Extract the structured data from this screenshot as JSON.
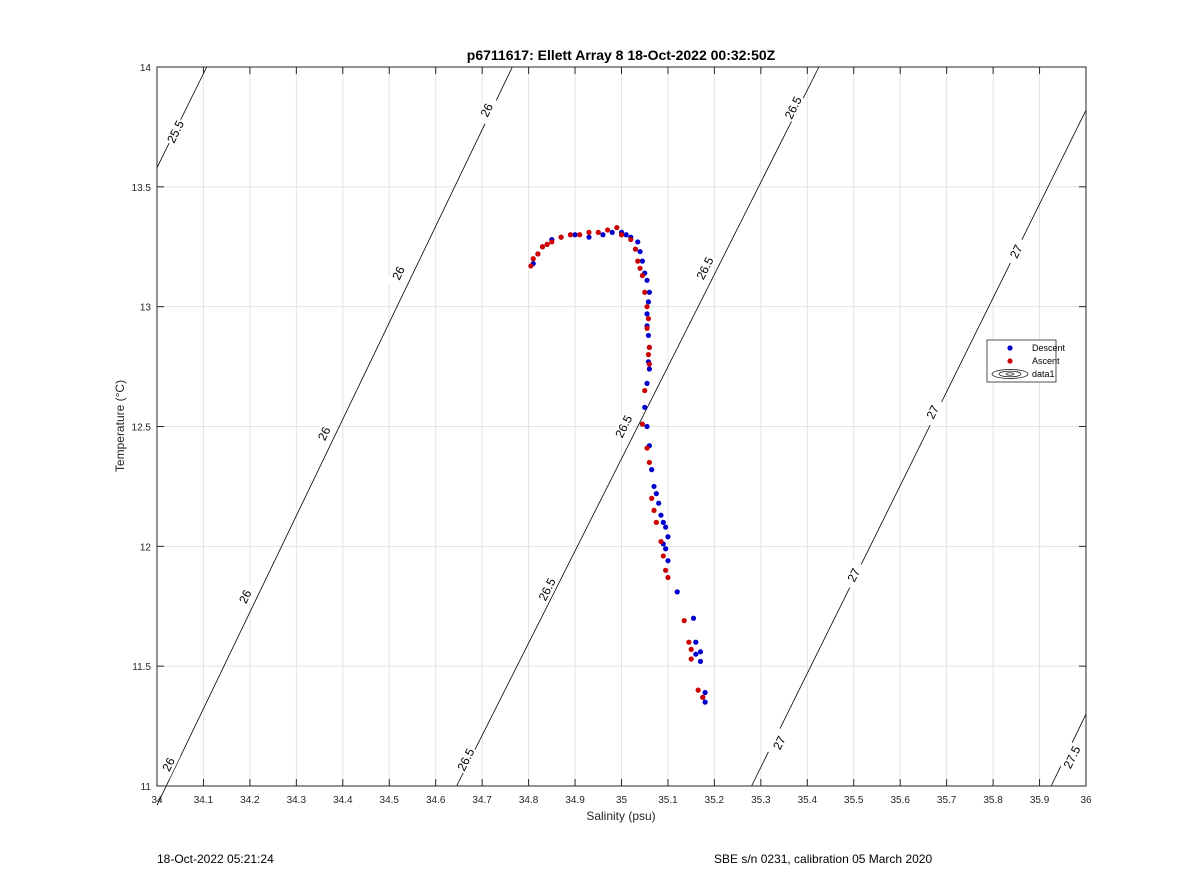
{
  "chart_data": {
    "type": "scatter",
    "title": "p6711617: Ellett Array 8 18-Oct-2022 00:32:50Z",
    "xlabel": "Salinity (psu)",
    "ylabel": "Temperature (°C)",
    "xlim": [
      34,
      36
    ],
    "ylim": [
      11,
      14
    ],
    "xticks": [
      "34",
      "34.1",
      "34.2",
      "34.3",
      "34.4",
      "34.5",
      "34.6",
      "34.7",
      "34.8",
      "34.9",
      "35",
      "35.1",
      "35.2",
      "35.3",
      "35.4",
      "35.5",
      "35.6",
      "35.7",
      "35.8",
      "35.9",
      "36"
    ],
    "yticks": [
      "11",
      "11.5",
      "12",
      "12.5",
      "13",
      "13.5",
      "14"
    ],
    "grid": true,
    "legend_position": "east",
    "legend": [
      "Descent",
      "Ascent",
      "data1"
    ],
    "series": [
      {
        "name": "Descent",
        "color": "#0000cc",
        "x": [
          35.18,
          35.175,
          35.18,
          35.17,
          35.17,
          35.16,
          35.16,
          35.155,
          35.12,
          35.1,
          35.095,
          35.09,
          35.1,
          35.095,
          35.09,
          35.085,
          35.08,
          35.075,
          35.07,
          35.065,
          35.06,
          35.055,
          35.05,
          35.055,
          35.06,
          35.058,
          35.06,
          35.058,
          35.055,
          35.055,
          35.058,
          35.06,
          35.055,
          35.05,
          35.045,
          35.04,
          35.035,
          35.02,
          35.01,
          35.0,
          34.98,
          34.96,
          34.93,
          34.9,
          34.87,
          34.85,
          34.83,
          34.82,
          34.81
        ],
        "y": [
          11.35,
          11.37,
          11.39,
          11.52,
          11.56,
          11.6,
          11.55,
          11.7,
          11.81,
          11.94,
          11.99,
          12.01,
          12.04,
          12.08,
          12.1,
          12.13,
          12.18,
          12.22,
          12.25,
          12.32,
          12.42,
          12.5,
          12.58,
          12.68,
          12.74,
          12.77,
          12.83,
          12.88,
          12.92,
          12.97,
          13.02,
          13.06,
          13.11,
          13.14,
          13.19,
          13.23,
          13.27,
          13.29,
          13.3,
          13.31,
          13.31,
          13.3,
          13.29,
          13.3,
          13.29,
          13.28,
          13.25,
          13.22,
          13.18
        ]
      },
      {
        "name": "Ascent",
        "color": "#cc0000",
        "x": [
          35.175,
          35.165,
          35.15,
          35.15,
          35.145,
          35.135,
          35.1,
          35.095,
          35.09,
          35.085,
          35.075,
          35.07,
          35.065,
          35.06,
          35.055,
          35.045,
          35.05,
          35.06,
          35.058,
          35.06,
          35.055,
          35.058,
          35.055,
          35.05,
          35.045,
          35.04,
          35.035,
          35.03,
          35.02,
          35.0,
          34.99,
          34.97,
          34.95,
          34.93,
          34.91,
          34.89,
          34.87,
          34.85,
          34.84,
          34.83,
          34.82,
          34.81,
          34.805
        ],
        "y": [
          11.37,
          11.4,
          11.53,
          11.57,
          11.6,
          11.69,
          11.87,
          11.9,
          11.96,
          12.02,
          12.1,
          12.15,
          12.2,
          12.35,
          12.41,
          12.51,
          12.65,
          12.76,
          12.8,
          12.83,
          12.91,
          12.95,
          13.0,
          13.06,
          13.13,
          13.16,
          13.19,
          13.24,
          13.28,
          13.3,
          13.33,
          13.32,
          13.31,
          13.31,
          13.3,
          13.3,
          13.29,
          13.27,
          13.26,
          13.25,
          13.22,
          13.2,
          13.17
        ]
      }
    ],
    "isopycnals": [
      {
        "level": "25.5",
        "points": [
          [
            34.0,
            13.58
          ],
          [
            34.107,
            14.0
          ]
        ],
        "label_positions": [
          [
            34.04,
            13.73
          ]
        ]
      },
      {
        "level": "26",
        "points": [
          [
            34.0,
            10.92
          ],
          [
            34.765,
            14.0
          ]
        ],
        "label_positions": [
          [
            34.025,
            11.09
          ],
          [
            34.19,
            11.79
          ],
          [
            34.36,
            12.47
          ],
          [
            34.52,
            13.14
          ],
          [
            34.71,
            13.82
          ]
        ]
      },
      {
        "level": "26.5",
        "points": [
          [
            34.645,
            11.0
          ],
          [
            35.425,
            14.0
          ]
        ],
        "label_positions": [
          [
            34.665,
            11.11
          ],
          [
            34.84,
            11.82
          ],
          [
            35.005,
            12.5
          ],
          [
            35.18,
            13.16
          ],
          [
            35.37,
            13.83
          ]
        ]
      },
      {
        "level": "27",
        "points": [
          [
            35.28,
            11.0
          ],
          [
            36.0,
            13.82
          ]
        ],
        "label_positions": [
          [
            35.34,
            11.18
          ],
          [
            35.5,
            11.88
          ],
          [
            35.67,
            12.56
          ],
          [
            35.85,
            13.23
          ]
        ]
      },
      {
        "level": "27.5",
        "points": [
          [
            35.925,
            11.0
          ],
          [
            36.0,
            11.3
          ]
        ],
        "label_positions": [
          [
            35.97,
            11.12
          ]
        ]
      }
    ]
  },
  "footer": {
    "left": "18-Oct-2022 05:21:24",
    "right": "SBE s/n 0231, calibration 05 March 2020"
  }
}
